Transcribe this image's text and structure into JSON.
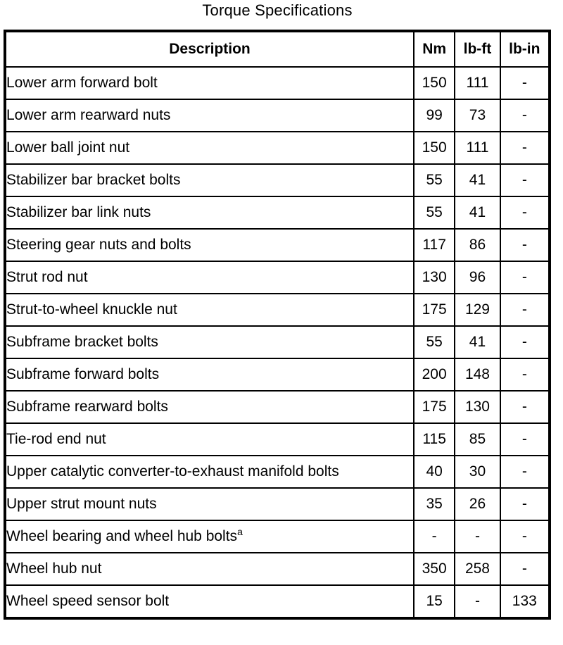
{
  "title": "Torque Specifications",
  "table": {
    "headers": {
      "description": "Description",
      "nm": "Nm",
      "lb_ft": "lb-ft",
      "lb_in": "lb-in"
    },
    "rows": [
      {
        "description": "Lower arm forward bolt",
        "footnote": "",
        "nm": "150",
        "lb_ft": "111",
        "lb_in": "-"
      },
      {
        "description": "Lower arm rearward nuts",
        "footnote": "",
        "nm": "99",
        "lb_ft": "73",
        "lb_in": "-"
      },
      {
        "description": "Lower ball joint nut",
        "footnote": "",
        "nm": "150",
        "lb_ft": "111",
        "lb_in": "-"
      },
      {
        "description": "Stabilizer bar bracket bolts",
        "footnote": "",
        "nm": "55",
        "lb_ft": "41",
        "lb_in": "-"
      },
      {
        "description": "Stabilizer bar link nuts",
        "footnote": "",
        "nm": "55",
        "lb_ft": "41",
        "lb_in": "-"
      },
      {
        "description": "Steering gear nuts and bolts",
        "footnote": "",
        "nm": "117",
        "lb_ft": "86",
        "lb_in": "-"
      },
      {
        "description": "Strut rod nut",
        "footnote": "",
        "nm": "130",
        "lb_ft": "96",
        "lb_in": "-"
      },
      {
        "description": "Strut-to-wheel knuckle nut",
        "footnote": "",
        "nm": "175",
        "lb_ft": "129",
        "lb_in": "-"
      },
      {
        "description": "Subframe bracket bolts",
        "footnote": "",
        "nm": "55",
        "lb_ft": "41",
        "lb_in": "-"
      },
      {
        "description": "Subframe forward bolts",
        "footnote": "",
        "nm": "200",
        "lb_ft": "148",
        "lb_in": "-"
      },
      {
        "description": "Subframe rearward bolts",
        "footnote": "",
        "nm": "175",
        "lb_ft": "130",
        "lb_in": "-"
      },
      {
        "description": "Tie-rod end nut",
        "footnote": "",
        "nm": "115",
        "lb_ft": "85",
        "lb_in": "-"
      },
      {
        "description": "Upper catalytic converter-to-exhaust manifold bolts",
        "footnote": "",
        "nm": "40",
        "lb_ft": "30",
        "lb_in": "-"
      },
      {
        "description": "Upper strut mount nuts",
        "footnote": "",
        "nm": "35",
        "lb_ft": "26",
        "lb_in": "-"
      },
      {
        "description": "Wheel bearing and wheel hub bolts",
        "footnote": "a",
        "nm": "-",
        "lb_ft": "-",
        "lb_in": "-"
      },
      {
        "description": "Wheel hub nut",
        "footnote": "",
        "nm": "350",
        "lb_ft": "258",
        "lb_in": "-"
      },
      {
        "description": "Wheel speed sensor bolt",
        "footnote": "",
        "nm": "15",
        "lb_ft": "-",
        "lb_in": "133"
      }
    ]
  }
}
